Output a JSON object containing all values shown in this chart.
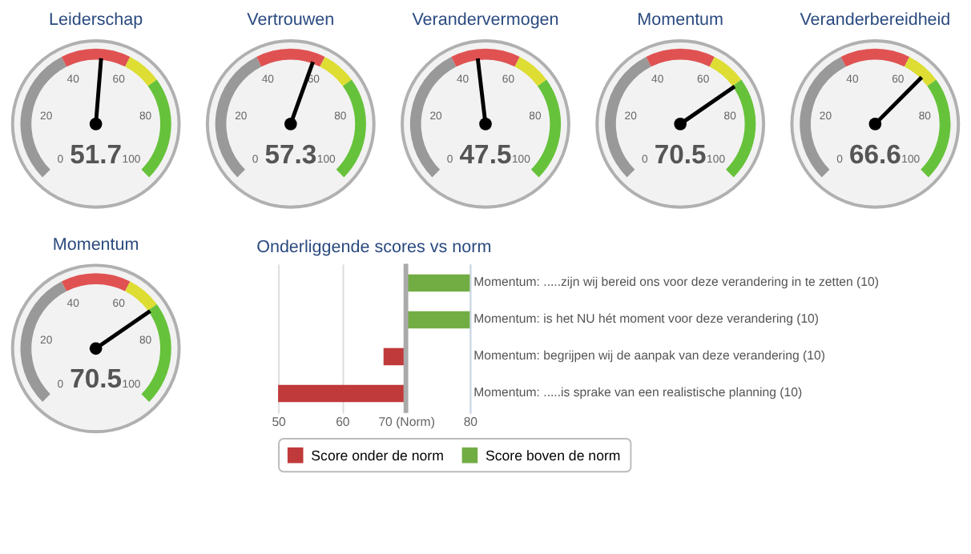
{
  "chart_data": [
    {
      "type": "other",
      "title": "Leiderschap",
      "values": [
        51.7
      ],
      "data_labels": true,
      "annotations": [
        "0",
        "20",
        "40",
        "60",
        "80",
        "100"
      ]
    },
    {
      "type": "other",
      "title": "Vertrouwen",
      "values": [
        57.3
      ],
      "data_labels": true,
      "annotations": [
        "0",
        "20",
        "40",
        "60",
        "80",
        "100"
      ]
    },
    {
      "type": "other",
      "title": "Verandervermogen",
      "values": [
        47.5
      ],
      "data_labels": true,
      "annotations": [
        "0",
        "20",
        "40",
        "60",
        "80",
        "100"
      ]
    },
    {
      "type": "other",
      "title": "Momentum",
      "values": [
        70.5
      ],
      "data_labels": true,
      "annotations": [
        "0",
        "20",
        "40",
        "60",
        "80",
        "100"
      ]
    },
    {
      "type": "other",
      "title": "Veranderbereidheid",
      "values": [
        66.6
      ],
      "data_labels": true,
      "annotations": [
        "0",
        "20",
        "40",
        "60",
        "80",
        "100"
      ]
    },
    {
      "type": "other",
      "title": "Momentum",
      "values": [
        70.5
      ],
      "data_labels": true,
      "annotations": [
        "0",
        "20",
        "40",
        "60",
        "80",
        "100"
      ]
    },
    {
      "type": "bar",
      "orientation": "horizontal",
      "title": "Onderliggende scores vs norm",
      "categories": [
        "Momentum: .....zijn wij bereid ons voor deze verandering in te zetten (10)",
        "Momentum: is het NU hét moment voor deze verandering (10)",
        "Momentum: begrijpen wij de aanpak van deze verandering (10)",
        "Momentum: .....is sprake van een realistische planning (10)"
      ],
      "series": [
        {
          "name": "Score onder de norm",
          "color": "#c0393b",
          "base": [
            null,
            null,
            70,
            70
          ],
          "values": [
            null,
            null,
            -3.5,
            -20
          ]
        },
        {
          "name": "Score boven de norm",
          "color": "#72ad44",
          "base": [
            70,
            70,
            null,
            null
          ],
          "values": [
            10,
            10,
            null,
            null
          ]
        }
      ],
      "xlim": [
        50,
        80
      ],
      "xticks": [
        50,
        60,
        {
          "value": 70,
          "label": "70 (Norm)"
        },
        80
      ],
      "grid": "x",
      "legend": "bottom",
      "ref_lines": [
        {
          "axis": "x",
          "value": 70,
          "color": "#aaaaaa"
        }
      ]
    }
  ]
}
